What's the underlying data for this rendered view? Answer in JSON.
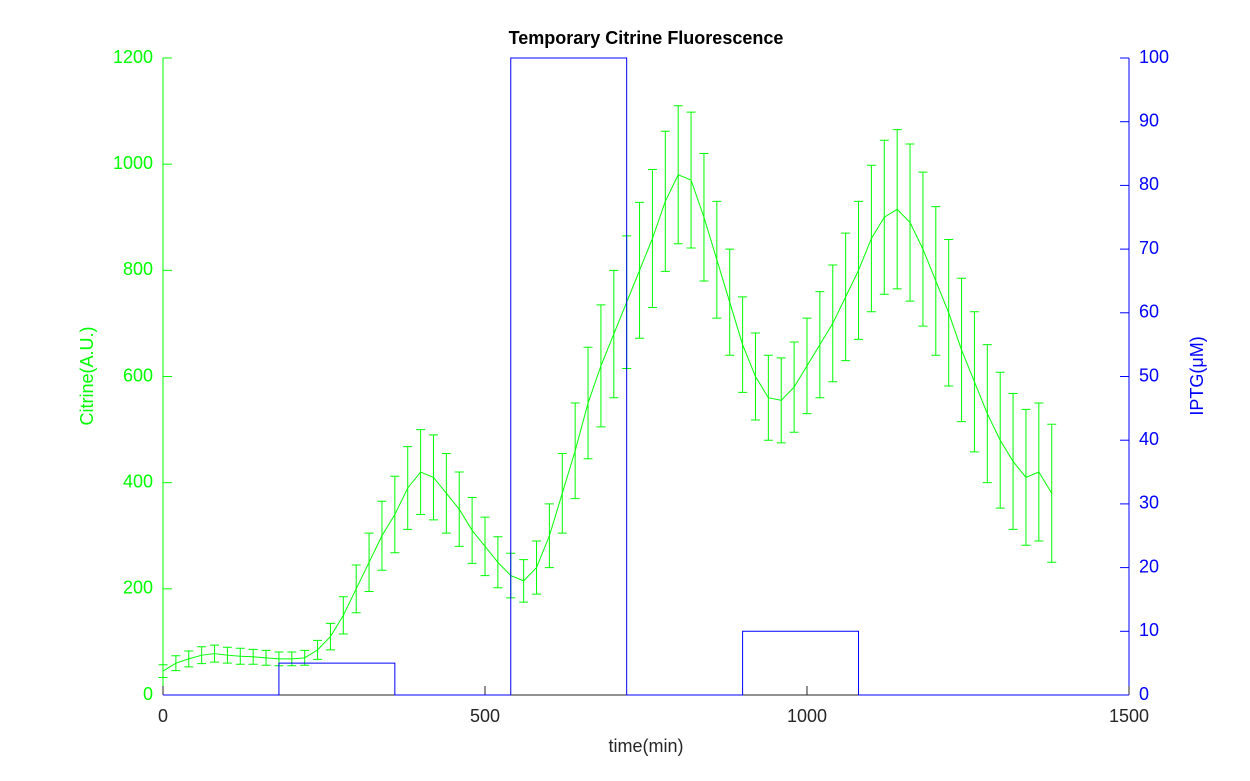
{
  "chart_data": {
    "type": "line",
    "title": "Temporary Citrine Fluorescence",
    "xlabel": "time(min)",
    "ylabel": "Citrine(A.U.)",
    "y2label": "IPTG(μM)",
    "xlim": [
      0,
      1500
    ],
    "xticks": [
      0,
      500,
      1000,
      1500
    ],
    "ylim": [
      0,
      1200
    ],
    "yticks": [
      0,
      200,
      400,
      600,
      800,
      1000,
      1200
    ],
    "y2lim": [
      0,
      100
    ],
    "y2ticks": [
      0,
      10,
      20,
      30,
      40,
      50,
      60,
      70,
      80,
      90,
      100
    ],
    "series": [
      {
        "color": "#00ff00",
        "x": [
          0,
          20,
          40,
          60,
          80,
          100,
          120,
          140,
          160,
          180,
          200,
          220,
          240,
          260,
          280,
          300,
          320,
          340,
          360,
          380,
          400,
          420,
          440,
          460,
          480,
          500,
          520,
          540,
          560,
          580,
          600,
          620,
          640,
          660,
          680,
          700,
          720,
          740,
          760,
          780,
          800,
          820,
          840,
          860,
          880,
          900,
          920,
          940,
          960,
          980,
          1000,
          1020,
          1040,
          1060,
          1080,
          1100,
          1120,
          1140,
          1160,
          1180,
          1200,
          1220,
          1240,
          1260,
          1280,
          1300,
          1320,
          1340,
          1360,
          1380
        ],
        "values": [
          45,
          60,
          68,
          75,
          78,
          75,
          73,
          72,
          70,
          68,
          68,
          70,
          85,
          110,
          150,
          200,
          250,
          300,
          340,
          390,
          420,
          410,
          380,
          350,
          310,
          280,
          250,
          225,
          215,
          240,
          300,
          380,
          460,
          550,
          620,
          680,
          740,
          800,
          860,
          930,
          980,
          970,
          900,
          820,
          740,
          660,
          600,
          560,
          555,
          580,
          620,
          660,
          700,
          750,
          800,
          860,
          900,
          915,
          890,
          840,
          780,
          720,
          650,
          590,
          530,
          480,
          440,
          410,
          420,
          380
        ],
        "errors": [
          12,
          14,
          15,
          16,
          16,
          15,
          15,
          14,
          14,
          13,
          13,
          14,
          18,
          25,
          35,
          45,
          55,
          65,
          72,
          78,
          80,
          80,
          75,
          70,
          62,
          55,
          48,
          42,
          40,
          50,
          60,
          75,
          90,
          105,
          115,
          120,
          125,
          128,
          130,
          132,
          130,
          128,
          120,
          110,
          100,
          90,
          82,
          80,
          80,
          85,
          90,
          100,
          110,
          120,
          130,
          138,
          145,
          150,
          148,
          145,
          140,
          138,
          135,
          132,
          130,
          128,
          128,
          128,
          130,
          130
        ]
      },
      {
        "color": "#0000ff",
        "axis": "y2",
        "x": [
          0,
          180,
          180,
          360,
          360,
          540,
          540,
          720,
          720,
          900,
          900,
          1080,
          1080,
          1500
        ],
        "values": [
          0,
          0,
          5,
          5,
          0,
          0,
          100,
          100,
          0,
          0,
          10,
          10,
          0,
          0
        ]
      }
    ]
  }
}
